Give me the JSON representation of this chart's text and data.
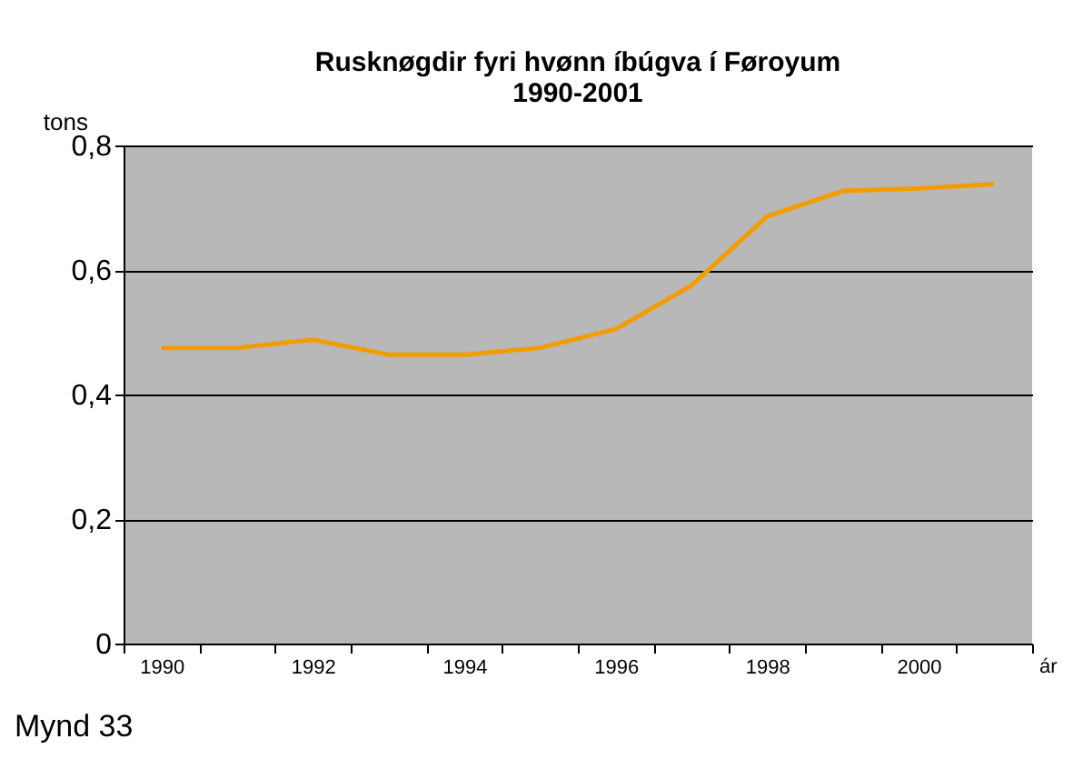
{
  "chart_data": {
    "type": "line",
    "title": "Rusknøgdir fyri hvønn íbúgva í Føroyum 1990-2001",
    "ylabel": "tons",
    "xlabel": "ár",
    "categories": [
      "1990",
      null,
      "1992",
      null,
      "1994",
      null,
      "1996",
      null,
      "1998",
      null,
      "2000",
      null
    ],
    "values": [
      0.475,
      0.475,
      0.488,
      0.464,
      0.464,
      0.475,
      0.505,
      0.575,
      0.686,
      0.727,
      0.731,
      0.738
    ],
    "color": "#f39c00",
    "ylim": [
      0,
      0.8
    ],
    "yticks": [
      0,
      {
        "value": 0.2,
        "label": "0,2"
      },
      {
        "value": 0.4,
        "label": "0,4"
      },
      {
        "value": 0.6,
        "label": "0,6"
      },
      {
        "value": 0.8,
        "label": "0,8"
      }
    ],
    "grid": "y",
    "marker": "none",
    "line_style": "solid",
    "annotations": [
      "Mynd 33"
    ]
  }
}
